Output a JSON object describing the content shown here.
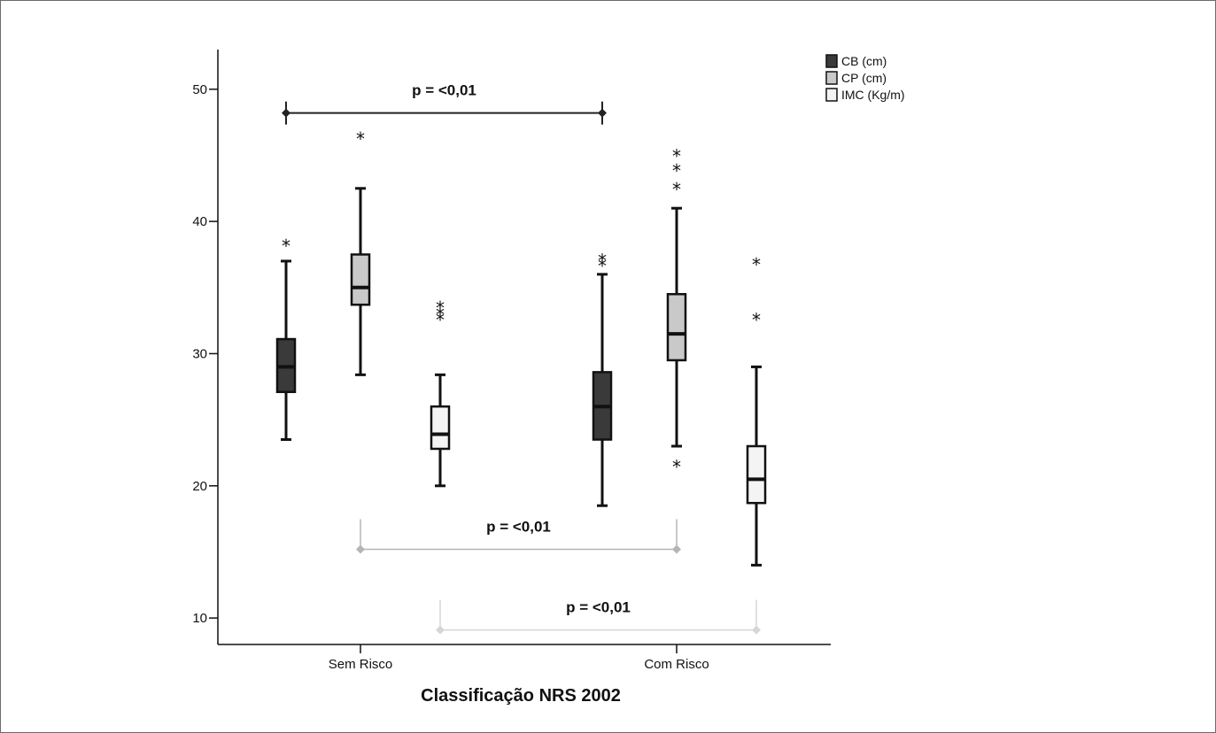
{
  "chart_data": {
    "type": "box",
    "xlabel": "Classificação NRS 2002",
    "ylabel": "",
    "ylim": [
      8,
      53
    ],
    "yticks": [
      10,
      20,
      30,
      40,
      50
    ],
    "categories": [
      "Sem Risco",
      "Com Risco"
    ],
    "legend_position": "top-right",
    "series": [
      {
        "name": "CB (cm)",
        "color": "#3a3a3a",
        "boxes": [
          {
            "category": "Sem Risco",
            "whisker_low": 23.5,
            "q1": 27.1,
            "median": 29.0,
            "q3": 31.1,
            "whisker_high": 37.0,
            "outliers": [
              38.2
            ]
          },
          {
            "category": "Com Risco",
            "whisker_low": 18.5,
            "q1": 23.5,
            "median": 26.0,
            "q3": 28.6,
            "whisker_high": 36.0,
            "outliers": [
              36.7,
              37.1
            ]
          }
        ]
      },
      {
        "name": "CP (cm)",
        "color": "#c9c9c9",
        "boxes": [
          {
            "category": "Sem Risco",
            "whisker_low": 28.4,
            "q1": 33.7,
            "median": 35.0,
            "q3": 37.5,
            "whisker_high": 42.5,
            "outliers": [
              46.3
            ]
          },
          {
            "category": "Com Risco",
            "whisker_low": 23.0,
            "q1": 29.5,
            "median": 31.5,
            "q3": 34.5,
            "whisker_high": 41.0,
            "outliers": [
              21.5,
              42.5,
              43.9,
              45.0
            ]
          }
        ]
      },
      {
        "name": "IMC (Kg/m)",
        "color": "#f4f4f4",
        "boxes": [
          {
            "category": "Sem Risco",
            "whisker_low": 20.0,
            "q1": 22.8,
            "median": 23.9,
            "q3": 26.0,
            "whisker_high": 28.4,
            "outliers": [
              32.6,
              33.0,
              33.5
            ]
          },
          {
            "category": "Com Risco",
            "whisker_low": 14.0,
            "q1": 18.7,
            "median": 20.5,
            "q3": 23.0,
            "whisker_high": 29.0,
            "outliers": [
              32.6,
              36.8
            ]
          }
        ]
      }
    ],
    "annotations": [
      {
        "text": "p = <0,01",
        "series": "CB (cm)",
        "y": 48.2,
        "color": "#222222"
      },
      {
        "text": "p = <0,01",
        "series": "CP (cm)",
        "y": 15.2,
        "color": "#b5b5b5"
      },
      {
        "text": "p = <0,01",
        "series": "IMC (Kg/m)",
        "y": 9.1,
        "color": "#d6d6d6"
      }
    ]
  }
}
